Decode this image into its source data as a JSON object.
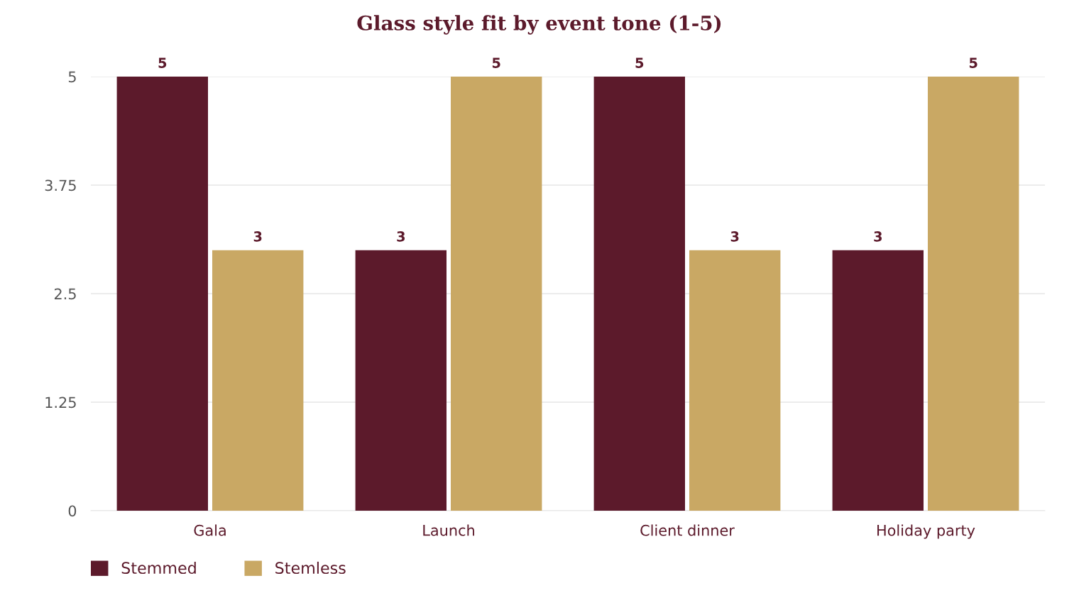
{
  "chart_data": {
    "type": "bar",
    "title": "Glass style fit by event tone (1-5)",
    "categories": [
      "Gala",
      "Launch",
      "Client dinner",
      "Holiday party"
    ],
    "series": [
      {
        "name": "Stemmed",
        "color": "#5c1a2b",
        "values": [
          5,
          3,
          5,
          3
        ]
      },
      {
        "name": "Stemless",
        "color": "#c9a864",
        "values": [
          3,
          5,
          3,
          5
        ]
      }
    ],
    "ylim": [
      0,
      5
    ],
    "yticks": [
      0,
      1.25,
      2.5,
      3.75,
      5
    ],
    "grid": "y",
    "legend": "bottom left",
    "data_labels": true
  }
}
